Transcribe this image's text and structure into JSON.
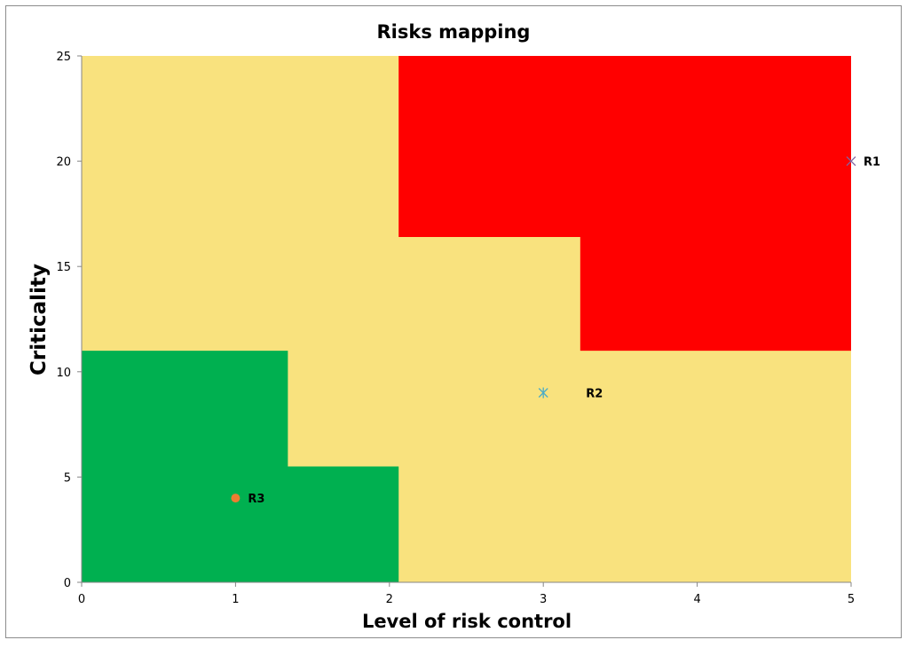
{
  "chart_data": {
    "type": "scatter",
    "title": "Risks mapping",
    "xlabel": "Level of risk control",
    "ylabel": "Criticality",
    "xlim": [
      0,
      5
    ],
    "ylim": [
      0,
      25
    ],
    "x_ticks": [
      "0",
      "1",
      "2",
      "3",
      "4",
      "5"
    ],
    "y_ticks": [
      "0",
      "5",
      "10",
      "15",
      "20",
      "25"
    ],
    "grid": false,
    "legend": "none",
    "background_color": "#F9E27E",
    "zones": [
      {
        "color": "#00B050",
        "polygon": [
          [
            0,
            0
          ],
          [
            0,
            11
          ],
          [
            1.34,
            11
          ],
          [
            1.34,
            5.5
          ],
          [
            2.06,
            5.5
          ],
          [
            2.06,
            0
          ]
        ]
      },
      {
        "color": "#FF0000",
        "polygon": [
          [
            2.06,
            25
          ],
          [
            5,
            25
          ],
          [
            5,
            11
          ],
          [
            3.24,
            11
          ],
          [
            3.24,
            16.4
          ],
          [
            2.06,
            16.4
          ]
        ]
      }
    ],
    "points": [
      {
        "label": "R1",
        "x": 5,
        "y": 20,
        "marker": "x",
        "color": "#8064A2"
      },
      {
        "label": "R2",
        "x": 3,
        "y": 9,
        "marker": "asterisk",
        "color": "#4BACC6"
      },
      {
        "label": "R3",
        "x": 1,
        "y": 4,
        "marker": "circle",
        "color": "#ED7D31"
      }
    ]
  }
}
